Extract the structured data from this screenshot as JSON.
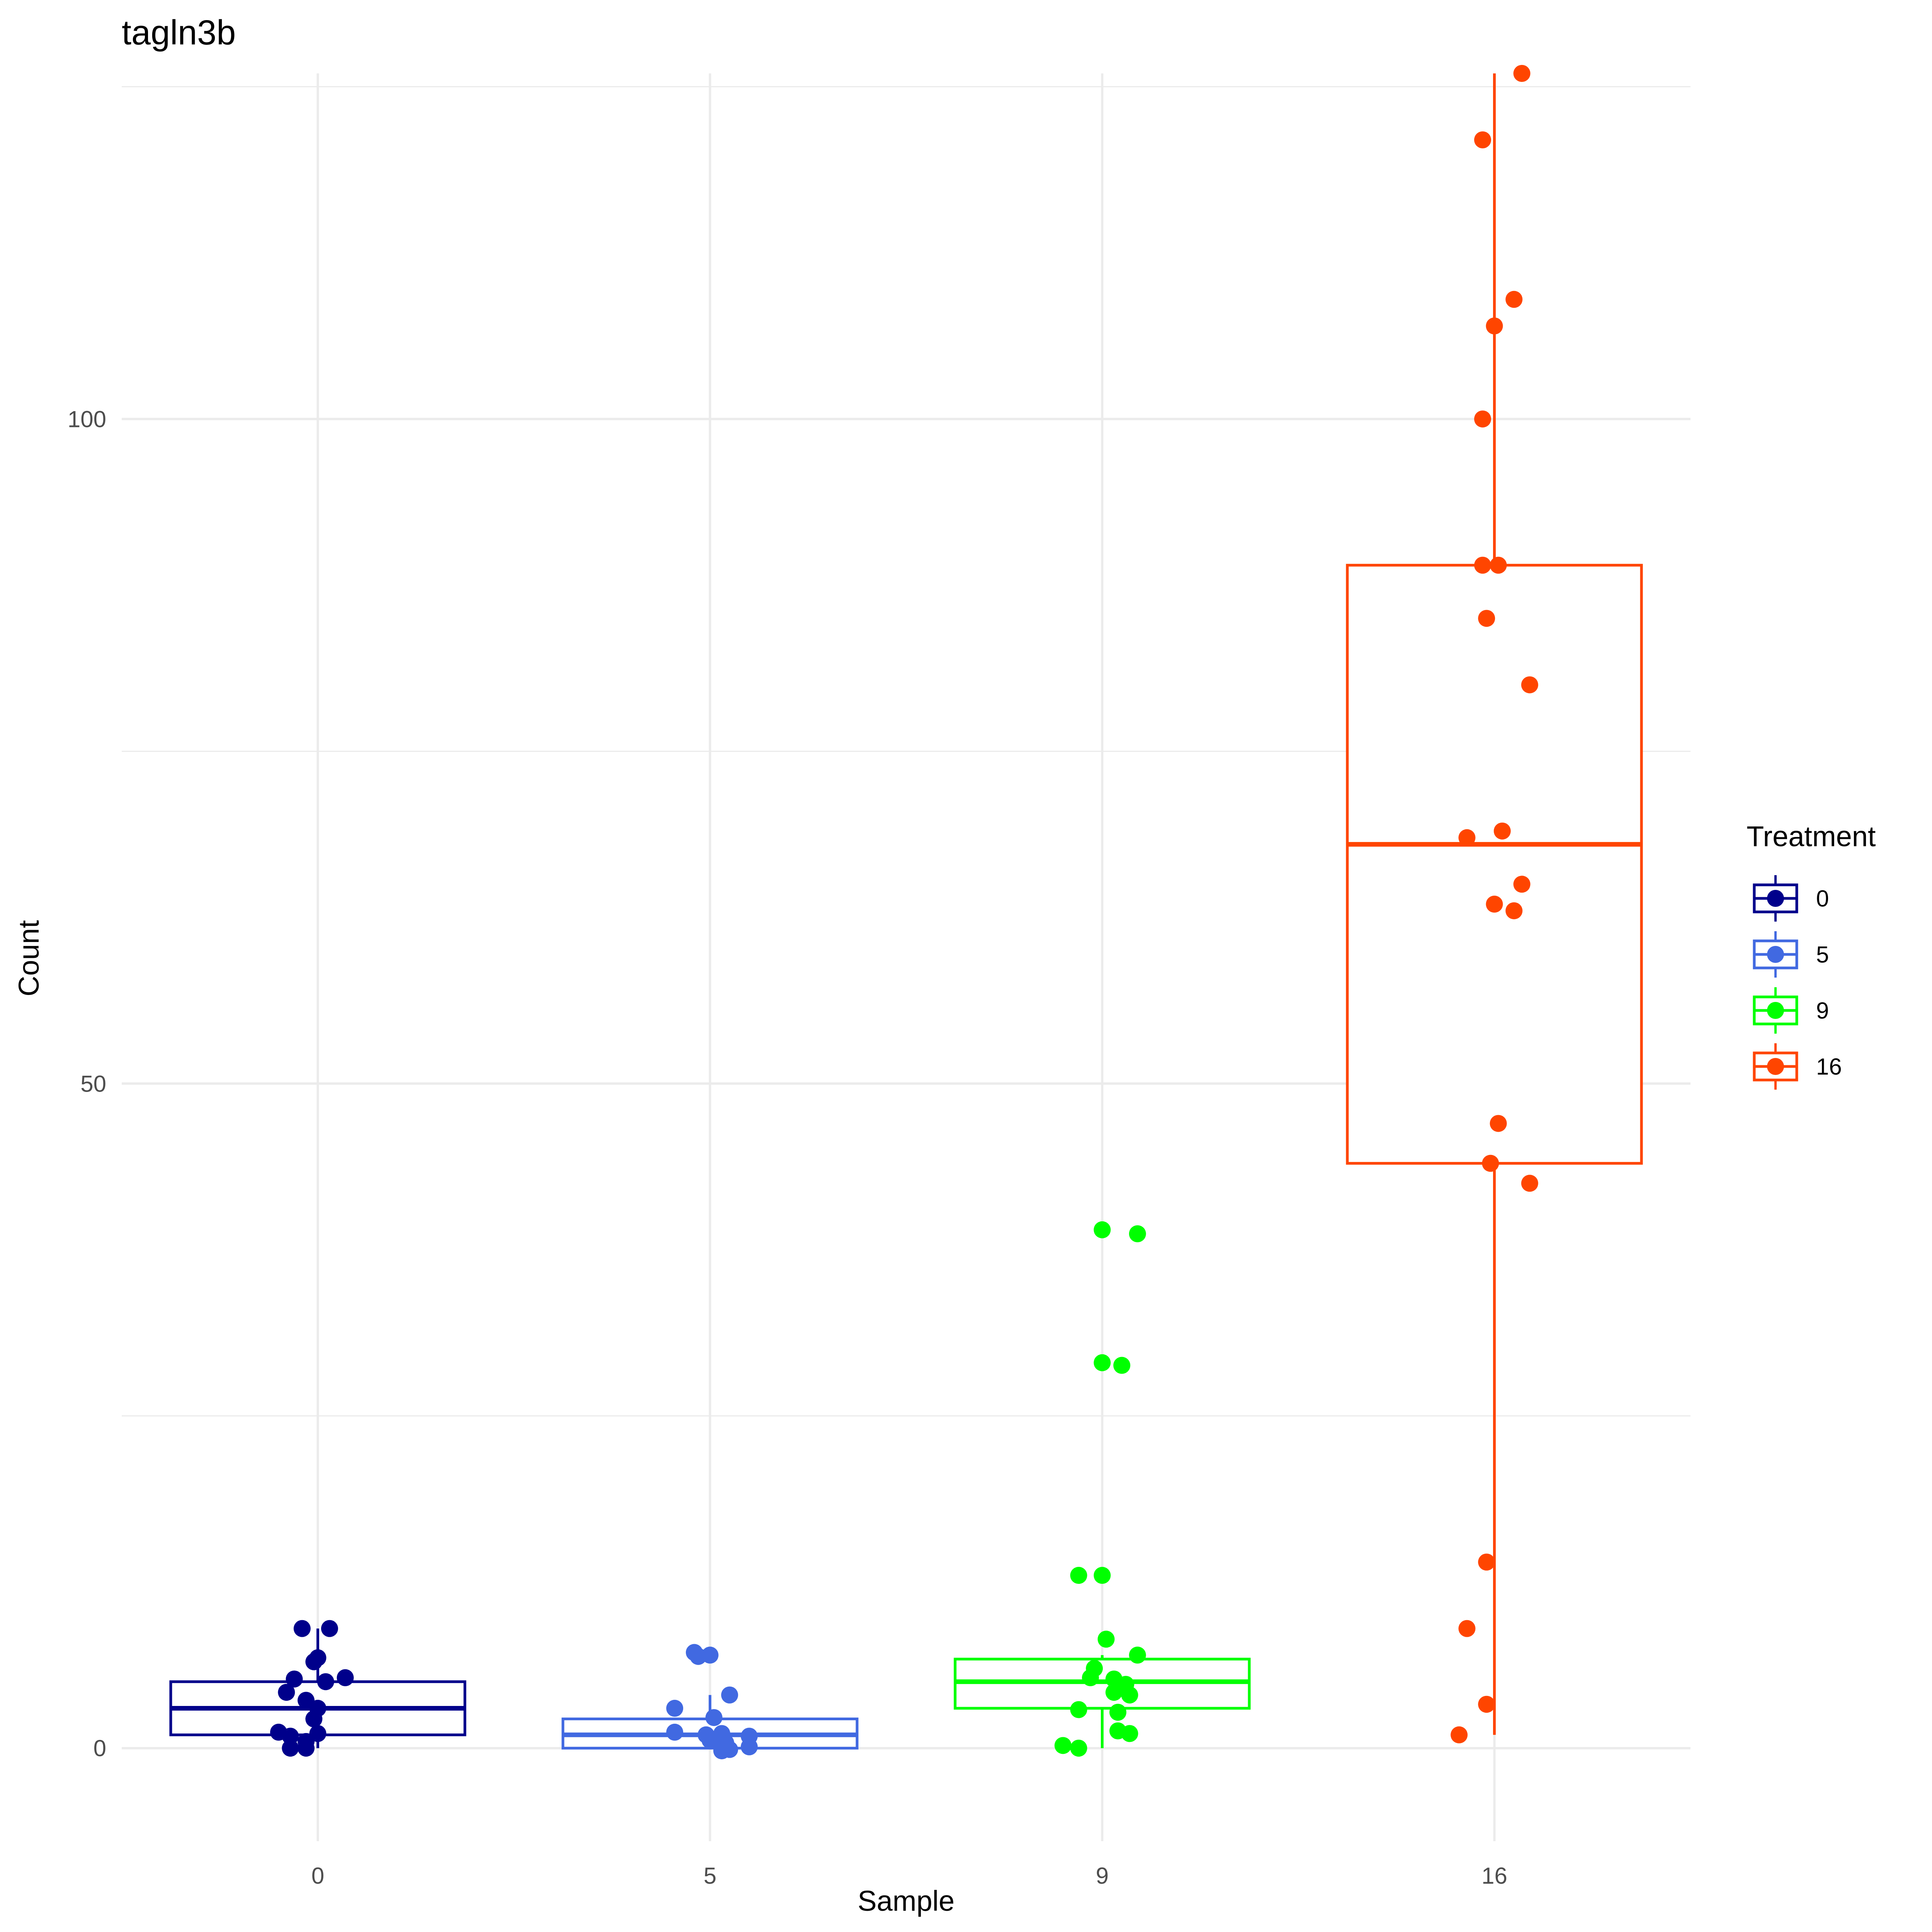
{
  "chart_data": {
    "type": "box",
    "title": "tagln3b",
    "xlabel": "Sample",
    "ylabel": "Count",
    "categories": [
      "0",
      "5",
      "9",
      "16"
    ],
    "ylim": [
      -7,
      126
    ],
    "yticks": [
      0,
      50,
      100
    ],
    "grid": true,
    "legend": {
      "title": "Treatment",
      "position": "right",
      "entries": [
        "0",
        "5",
        "9",
        "16"
      ]
    },
    "series": [
      {
        "name": "0",
        "color": "#00008B",
        "box": {
          "whisker_low": 0,
          "q1": 1,
          "median": 3,
          "q3": 5,
          "whisker_high": 9
        },
        "points": [
          {
            "dx": -0.04,
            "y": 9
          },
          {
            "dx": 0.03,
            "y": 9
          },
          {
            "dx": -0.01,
            "y": 6.5
          },
          {
            "dx": 0.0,
            "y": 6.8
          },
          {
            "dx": -0.06,
            "y": 5.2
          },
          {
            "dx": 0.02,
            "y": 5.0
          },
          {
            "dx": 0.07,
            "y": 5.3
          },
          {
            "dx": -0.08,
            "y": 4.2
          },
          {
            "dx": -0.03,
            "y": 3.6
          },
          {
            "dx": 0.0,
            "y": 3.0
          },
          {
            "dx": -0.01,
            "y": 2.2
          },
          {
            "dx": -0.1,
            "y": 1.2
          },
          {
            "dx": -0.07,
            "y": 0.9
          },
          {
            "dx": 0.0,
            "y": 1.1
          },
          {
            "dx": -0.03,
            "y": 0.5
          },
          {
            "dx": -0.07,
            "y": 0.0
          },
          {
            "dx": -0.03,
            "y": 0.0
          }
        ]
      },
      {
        "name": "5",
        "color": "#4169E1",
        "box": {
          "whisker_low": 0,
          "q1": 0,
          "median": 1,
          "q3": 2.2,
          "whisker_high": 4
        },
        "points": [
          {
            "dx": -0.04,
            "y": 7.2
          },
          {
            "dx": -0.03,
            "y": 6.9
          },
          {
            "dx": 0.0,
            "y": 7.0
          },
          {
            "dx": 0.05,
            "y": 4.0
          },
          {
            "dx": -0.09,
            "y": 3.0
          },
          {
            "dx": 0.01,
            "y": 2.3
          },
          {
            "dx": -0.09,
            "y": 1.2
          },
          {
            "dx": -0.01,
            "y": 1.0
          },
          {
            "dx": 0.03,
            "y": 1.1
          },
          {
            "dx": 0.1,
            "y": 0.9
          },
          {
            "dx": 0.0,
            "y": 0.6
          },
          {
            "dx": 0.04,
            "y": 0.4
          },
          {
            "dx": 0.1,
            "y": 0.1
          },
          {
            "dx": 0.05,
            "y": -0.1
          },
          {
            "dx": 0.03,
            "y": -0.2
          }
        ]
      },
      {
        "name": "9",
        "color": "#00FF00",
        "box": {
          "whisker_low": 0,
          "q1": 3,
          "median": 5,
          "q3": 6.7,
          "whisker_high": 7
        },
        "points": [
          {
            "dx": 0.0,
            "y": 39
          },
          {
            "dx": 0.09,
            "y": 38.7
          },
          {
            "dx": 0.0,
            "y": 29
          },
          {
            "dx": 0.05,
            "y": 28.8
          },
          {
            "dx": -0.06,
            "y": 13
          },
          {
            "dx": 0.0,
            "y": 13
          },
          {
            "dx": 0.01,
            "y": 8.2
          },
          {
            "dx": 0.09,
            "y": 7.0
          },
          {
            "dx": -0.02,
            "y": 6.0
          },
          {
            "dx": -0.03,
            "y": 5.3
          },
          {
            "dx": 0.03,
            "y": 5.2
          },
          {
            "dx": 0.06,
            "y": 4.8
          },
          {
            "dx": 0.03,
            "y": 4.2
          },
          {
            "dx": 0.07,
            "y": 4.0
          },
          {
            "dx": -0.06,
            "y": 2.9
          },
          {
            "dx": 0.04,
            "y": 2.7
          },
          {
            "dx": 0.04,
            "y": 1.3
          },
          {
            "dx": 0.07,
            "y": 1.1
          },
          {
            "dx": -0.1,
            "y": 0.2
          },
          {
            "dx": -0.06,
            "y": 0.0
          }
        ]
      },
      {
        "name": "16",
        "color": "#FF4500",
        "box": {
          "whisker_low": 1,
          "q1": 44,
          "median": 68,
          "q3": 89,
          "whisker_high": 126
        },
        "points": [
          {
            "dx": 0.07,
            "y": 126
          },
          {
            "dx": -0.03,
            "y": 121
          },
          {
            "dx": 0.05,
            "y": 109
          },
          {
            "dx": 0.0,
            "y": 107
          },
          {
            "dx": -0.03,
            "y": 100
          },
          {
            "dx": -0.03,
            "y": 89
          },
          {
            "dx": 0.01,
            "y": 89
          },
          {
            "dx": -0.02,
            "y": 85
          },
          {
            "dx": 0.09,
            "y": 80
          },
          {
            "dx": -0.07,
            "y": 68.5
          },
          {
            "dx": 0.02,
            "y": 69
          },
          {
            "dx": 0.07,
            "y": 65
          },
          {
            "dx": 0.0,
            "y": 63.5
          },
          {
            "dx": 0.05,
            "y": 63
          },
          {
            "dx": 0.01,
            "y": 47
          },
          {
            "dx": -0.01,
            "y": 44
          },
          {
            "dx": 0.09,
            "y": 42.5
          },
          {
            "dx": -0.02,
            "y": 14
          },
          {
            "dx": -0.07,
            "y": 9
          },
          {
            "dx": -0.02,
            "y": 3.3
          },
          {
            "dx": -0.09,
            "y": 1
          }
        ]
      }
    ]
  }
}
